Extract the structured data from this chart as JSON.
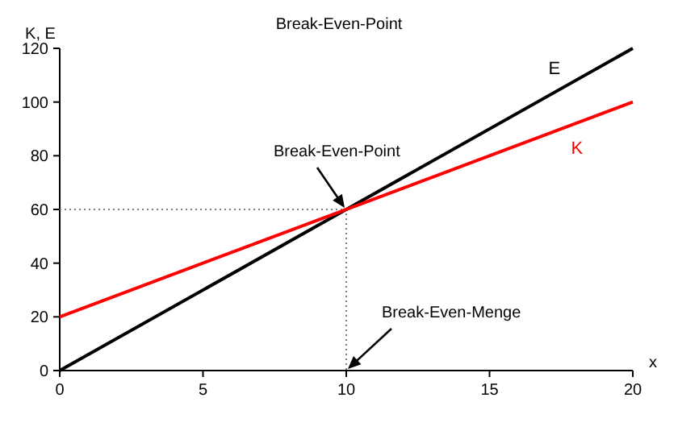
{
  "chart_data": {
    "type": "line",
    "title": "Break-Even-Point",
    "xlabel": "x",
    "ylabel": "K, E",
    "xlim": [
      0,
      20
    ],
    "xticks": [
      0,
      5,
      10,
      15,
      20
    ],
    "ylim": [
      0,
      120
    ],
    "yticks": [
      0,
      20,
      40,
      60,
      80,
      100,
      120
    ],
    "grid": false,
    "marker": "none",
    "line_style": "solid",
    "series": [
      {
        "name": "E",
        "color": "#000000",
        "x": [
          0,
          20
        ],
        "values": [
          0,
          120
        ]
      },
      {
        "name": "K",
        "color": "#ff0000",
        "x": [
          0,
          20
        ],
        "values": [
          20,
          100
        ]
      },
      {
        "color": "#808080",
        "x": [
          0,
          10,
          10
        ],
        "values": [
          60,
          60,
          0
        ],
        "line_style": "dotted"
      }
    ],
    "annotations": [
      {
        "text": "Break-Even-Point",
        "x": 10,
        "y": 60
      },
      {
        "text": "Break-Even-Menge",
        "x": 10,
        "y": 0
      }
    ]
  }
}
